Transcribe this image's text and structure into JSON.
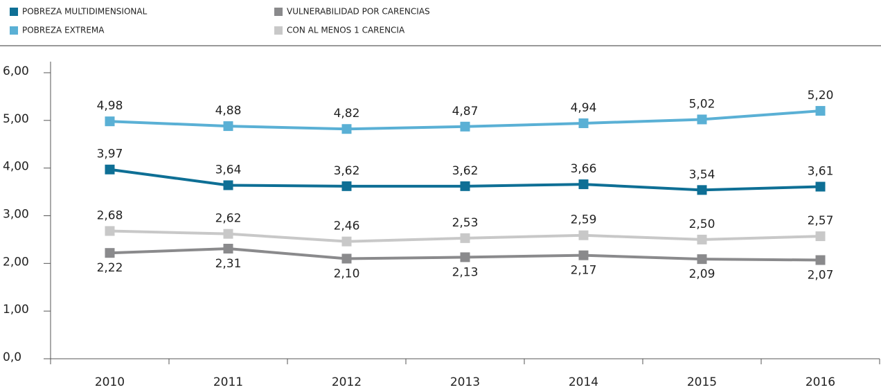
{
  "chart_data": {
    "type": "line",
    "categories": [
      "2010",
      "2011",
      "2012",
      "2013",
      "2014",
      "2015",
      "2016"
    ],
    "series": [
      {
        "name": "POBREZA MULTIDIMENSIONAL",
        "color": "#0e6f95",
        "values": [
          3.97,
          3.64,
          3.62,
          3.62,
          3.66,
          3.54,
          3.61
        ],
        "value_labels": [
          "3,97",
          "3,64",
          "3,62",
          "3,62",
          "3,66",
          "3,54",
          "3,61"
        ]
      },
      {
        "name": "POBREZA EXTREMA",
        "color": "#5ab0d5",
        "values": [
          4.98,
          4.88,
          4.82,
          4.87,
          4.94,
          5.02,
          5.2
        ],
        "value_labels": [
          "4,98",
          "4,88",
          "4,82",
          "4,87",
          "4,94",
          "5,02",
          "5,20"
        ]
      },
      {
        "name": "VULNERABILIDAD POR CARENCIAS",
        "color": "#8a8a8c",
        "values": [
          2.22,
          2.31,
          2.1,
          2.13,
          2.17,
          2.09,
          2.07
        ],
        "value_labels": [
          "2,22",
          "2,31",
          "2,10",
          "2,13",
          "2,17",
          "2,09",
          "2,07"
        ]
      },
      {
        "name": "CON AL MENOS 1 CARENCIA",
        "color": "#c8c8c8",
        "values": [
          2.68,
          2.62,
          2.46,
          2.53,
          2.59,
          2.5,
          2.57
        ],
        "value_labels": [
          "2,68",
          "2,62",
          "2,46",
          "2,53",
          "2,59",
          "2,50",
          "2,57"
        ]
      }
    ],
    "ylim": [
      0,
      6
    ],
    "yticks": [
      {
        "value": 0,
        "label": "0,0"
      },
      {
        "value": 1,
        "label": "1,00"
      },
      {
        "value": 2,
        "label": "2,00"
      },
      {
        "value": 3,
        "label": "3,00"
      },
      {
        "value": 4,
        "label": "4,00"
      },
      {
        "value": 5,
        "label": "5,00"
      },
      {
        "value": 6,
        "label": "6,00"
      }
    ]
  }
}
